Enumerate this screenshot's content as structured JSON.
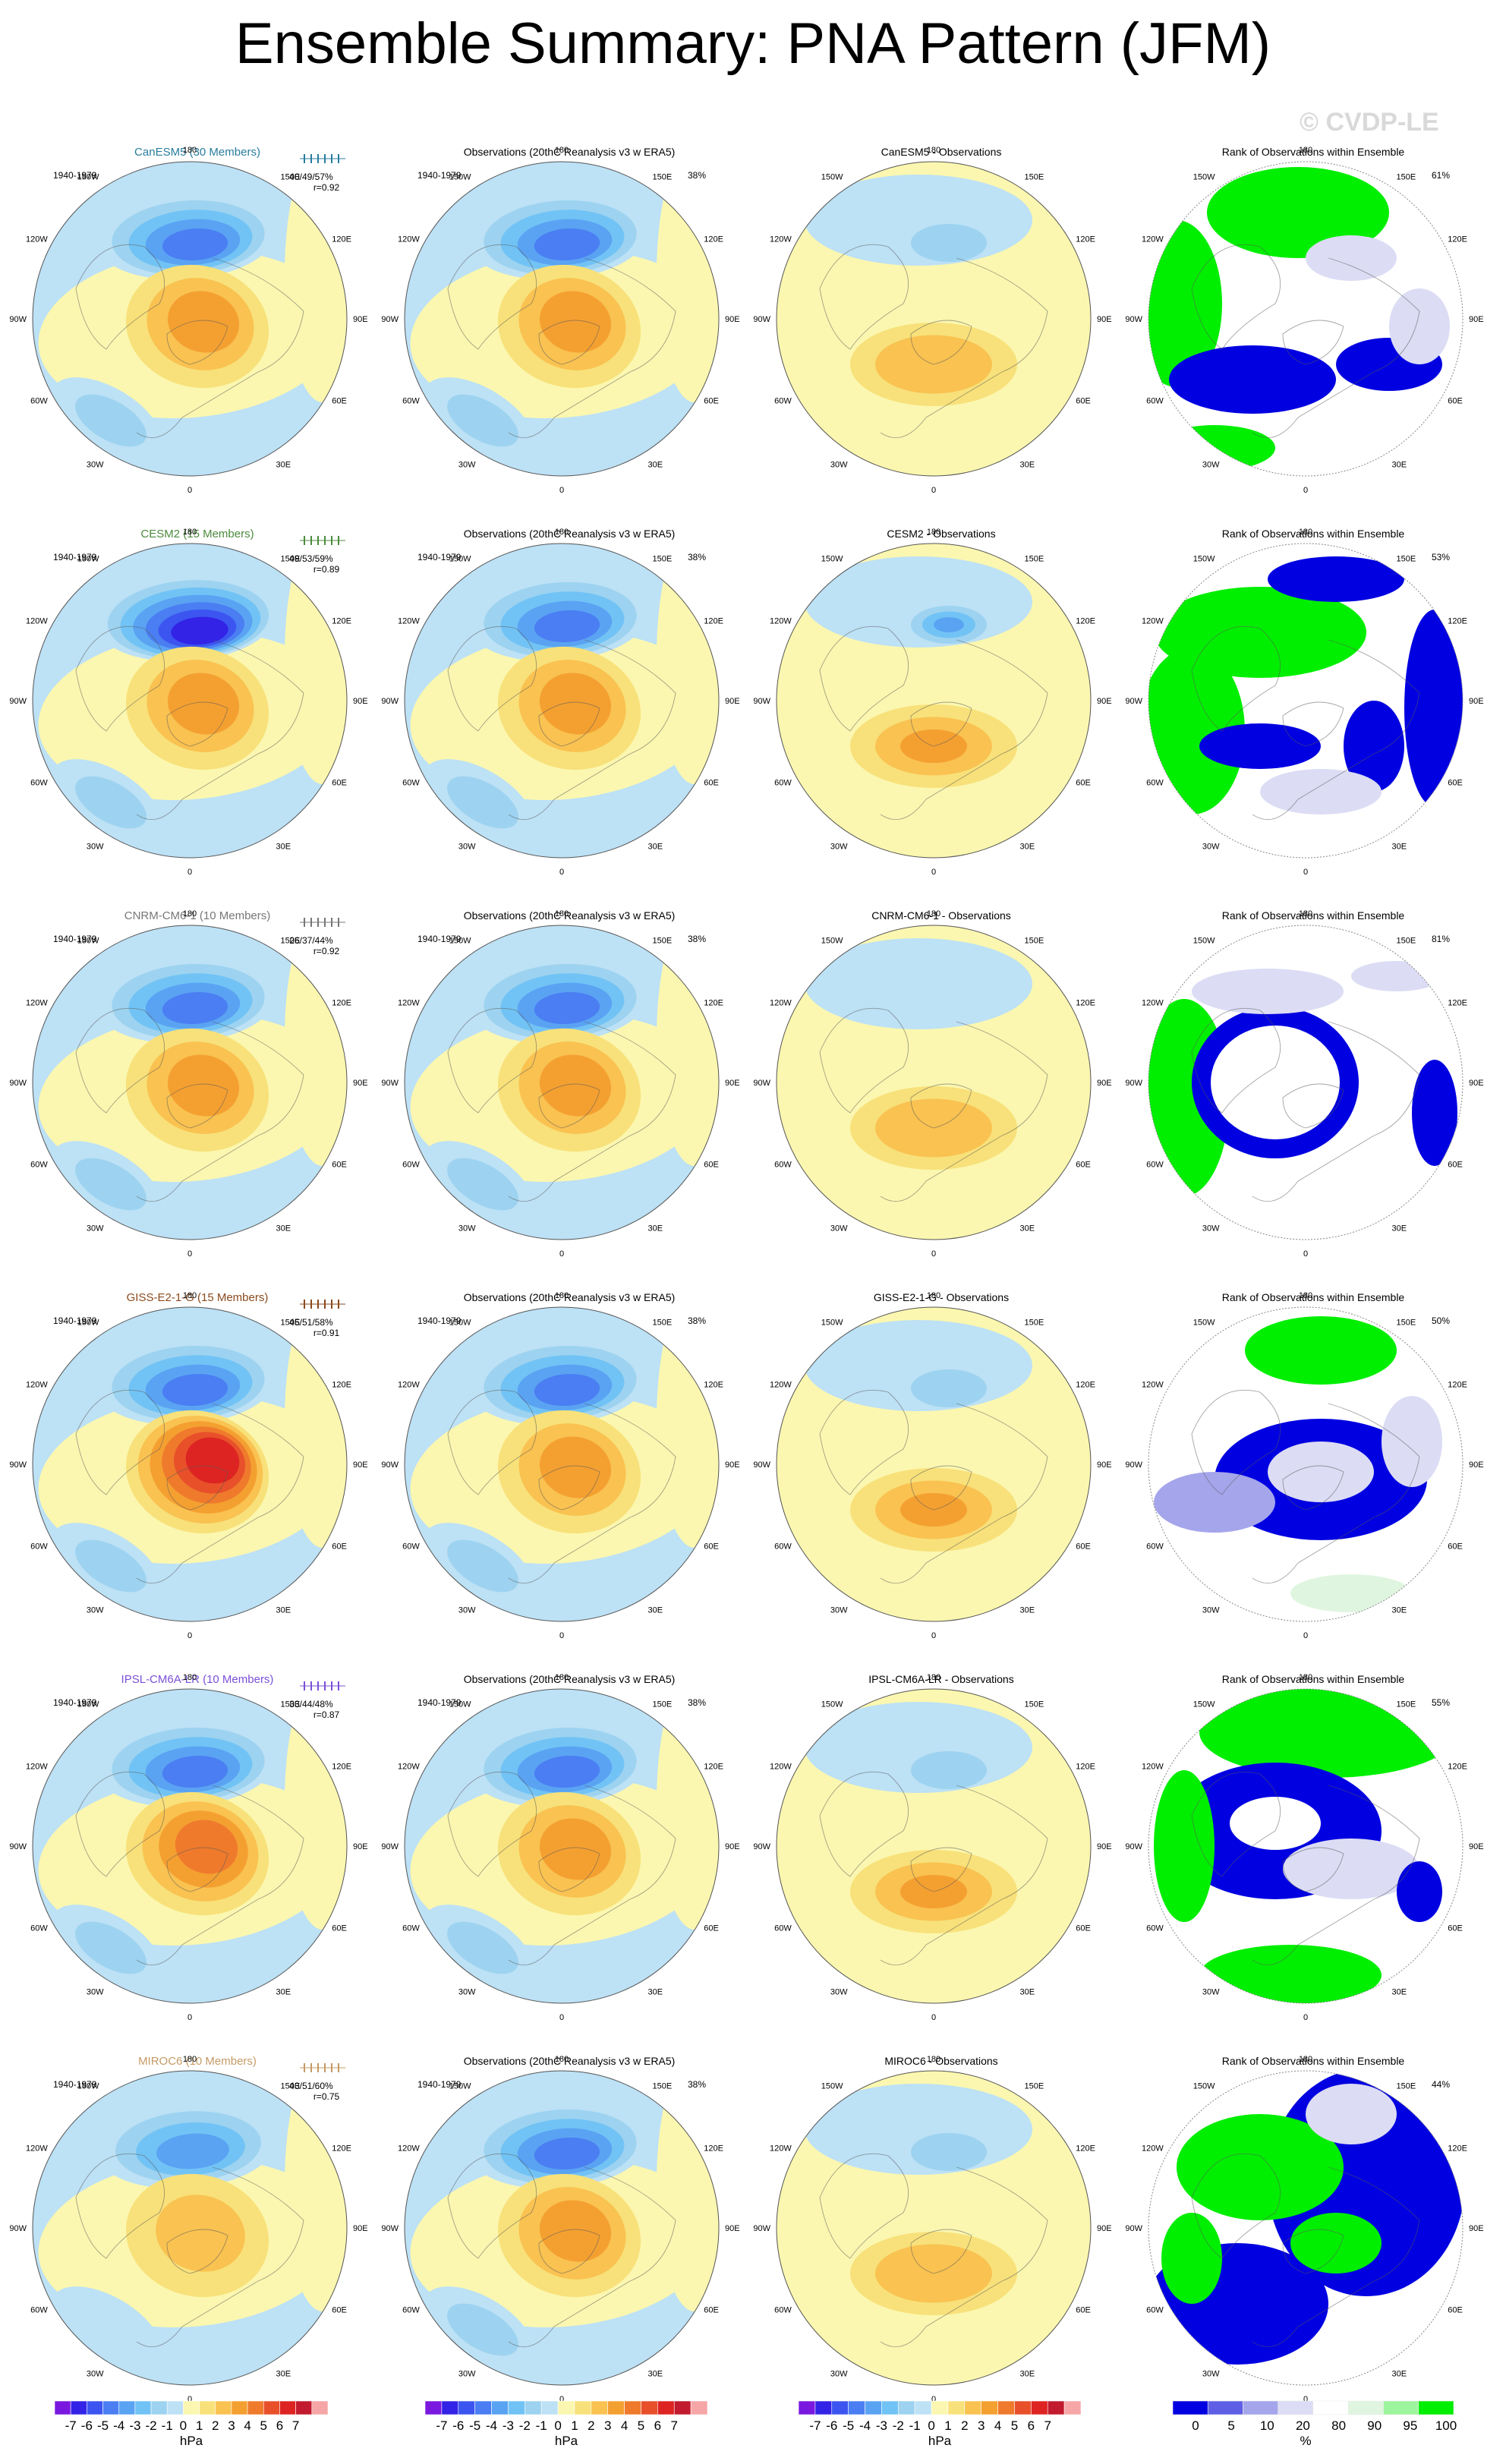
{
  "title": "Ensemble Summary: PNA Pattern (JFM)",
  "watermark": "© CVDP-LE",
  "period": "1940-1979",
  "column_titles": {
    "observations": "Observations (20thC Reanalysis v3 w ERA5)",
    "diff_suffix": " - Observations",
    "rank": "Rank of Observations within Ensemble"
  },
  "obs_percent": "38%",
  "lon_labels": {
    "top": "180",
    "bottom": "0",
    "tl1": "150W",
    "tr1": "150E",
    "tl2": "120W",
    "tr2": "120E",
    "l": "90W",
    "r": "90E",
    "bl2": "60W",
    "br2": "60E",
    "bl1": "30W",
    "br1": "30E"
  },
  "colorbar": {
    "unit": "hPa",
    "tick_labels": [
      "-7",
      "-6",
      "-5",
      "-4",
      "-3",
      "-2",
      "-1",
      "0",
      "1",
      "2",
      "3",
      "4",
      "5",
      "6",
      "7"
    ],
    "colors": [
      "#7b18e0",
      "#3323e6",
      "#3c55f0",
      "#4a7ef2",
      "#5aa3f3",
      "#72c3f5",
      "#9dd3f0",
      "#bde1f5",
      "#fbf7b0",
      "#f8e17a",
      "#f9c251",
      "#f4a031",
      "#ef7a2c",
      "#e8502a",
      "#dd2422",
      "#c21a2e",
      "#f6a6a6"
    ]
  },
  "rank_colorbar": {
    "unit": "%",
    "tick_labels": [
      "0",
      "5",
      "10",
      "20",
      "80",
      "90",
      "95",
      "100"
    ],
    "colors": [
      "#0000e0",
      "#5f5fe6",
      "#a5a5ec",
      "#dcdcf5",
      "#ffffff",
      "#dff5df",
      "#9df59d",
      "#00ee00"
    ]
  },
  "chart_data": [
    {
      "type": "heatmap",
      "model": "CanESM5",
      "label": "CanESM5 (30 Members)",
      "label_color": "#287d9e",
      "stats": "40/49/57%",
      "r": "r=0.92",
      "rank_percent": "61%",
      "ensemble_pattern": {
        "aleutian_low_min_hPa": -5,
        "arctic_max_hPa": 3,
        "pacific_low_min_hPa": -2
      },
      "difference_pattern": {
        "max_hPa": 2,
        "min_hPa": -2
      },
      "rank_pattern": "green over North Pacific and Eurasia; blue over Canada and Scandinavia"
    },
    {
      "type": "heatmap",
      "model": "CESM2",
      "label": "CESM2 (15 Members)",
      "label_color": "#4c8a3e",
      "stats": "49/53/59%",
      "r": "r=0.89",
      "rank_percent": "53%",
      "ensemble_pattern": {
        "aleutian_low_min_hPa": -7,
        "arctic_max_hPa": 3,
        "pacific_low_min_hPa": -2
      },
      "difference_pattern": {
        "max_hPa": 3,
        "min_hPa": -4
      },
      "rank_pattern": "green over North Pacific; blue over Siberia and Atlantic"
    },
    {
      "type": "heatmap",
      "model": "CNRM-CM6-1",
      "label": "CNRM-CM6-1 (10 Members)",
      "label_color": "#777777",
      "stats": "26/37/44%",
      "r": "r=0.92",
      "rank_percent": "81%",
      "ensemble_pattern": {
        "aleutian_low_min_hPa": -5,
        "arctic_max_hPa": 3,
        "pacific_low_min_hPa": -2
      },
      "difference_pattern": {
        "max_hPa": 2,
        "min_hPa": -1
      },
      "rank_pattern": "green over North Atlantic; blue ring over Canada and Europe"
    },
    {
      "type": "heatmap",
      "model": "GISS-E2-1-G",
      "label": "GISS-E2-1-G (15 Members)",
      "label_color": "#8a4a1c",
      "stats": "45/51/58%",
      "r": "r=0.91",
      "rank_percent": "50%",
      "ensemble_pattern": {
        "aleutian_low_min_hPa": -5,
        "arctic_max_hPa": 6,
        "pacific_low_min_hPa": -2
      },
      "difference_pattern": {
        "max_hPa": 3,
        "min_hPa": -2
      },
      "rank_pattern": "green over North Pacific; blue over Arctic and Siberia"
    },
    {
      "type": "heatmap",
      "model": "IPSL-CM6A-LR",
      "label": "IPSL-CM6A-LR (10 Members)",
      "label_color": "#7b50d8",
      "stats": "33/44/48%",
      "r": "r=0.87",
      "rank_percent": "55%",
      "ensemble_pattern": {
        "aleutian_low_min_hPa": -5,
        "arctic_max_hPa": 4,
        "pacific_low_min_hPa": -2
      },
      "difference_pattern": {
        "max_hPa": 3,
        "min_hPa": -2
      },
      "rank_pattern": "green over North Pacific and Atlantic; blue over Eurasia"
    },
    {
      "type": "heatmap",
      "model": "MIROC6",
      "label": "MIROC6 (10 Members)",
      "label_color": "#c49a66",
      "stats": "43/51/60%",
      "r": "r=0.75",
      "rank_percent": "44%",
      "ensemble_pattern": {
        "aleutian_low_min_hPa": -4,
        "arctic_max_hPa": 2,
        "pacific_low_min_hPa": -1
      },
      "difference_pattern": {
        "max_hPa": 2,
        "min_hPa": -2
      },
      "rank_pattern": "blue over Eurasia and Atlantic; green over Pacific and Canada"
    }
  ]
}
